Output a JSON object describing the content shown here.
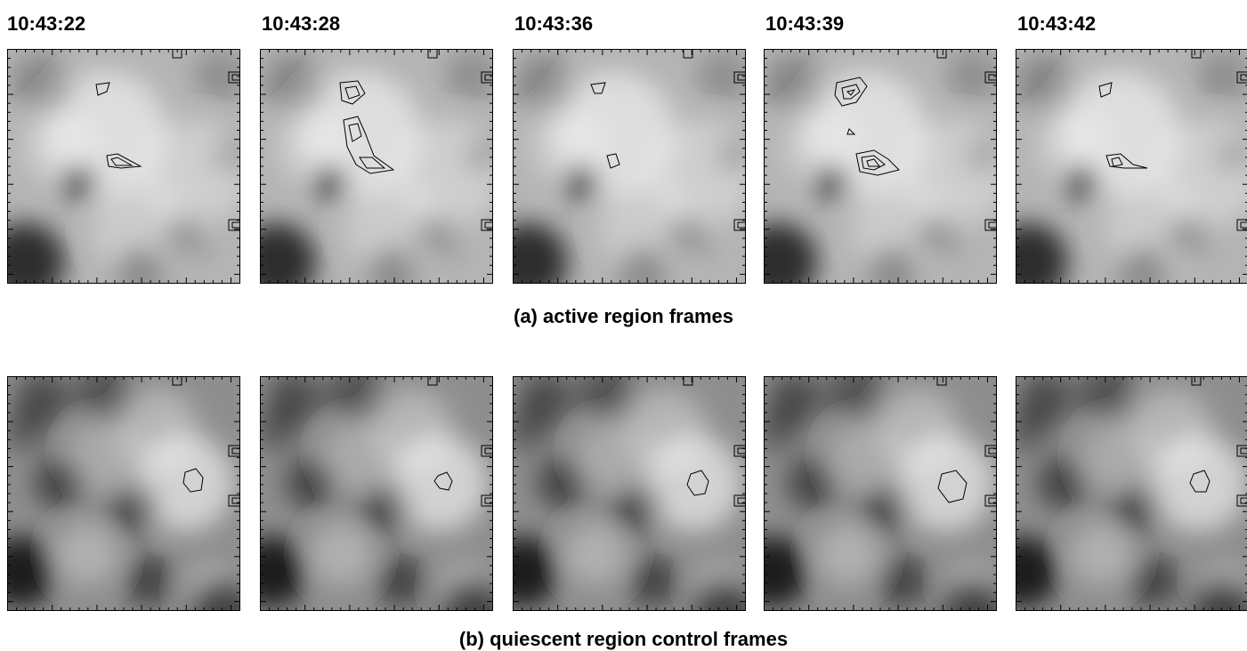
{
  "timestamps": [
    "10:43:22",
    "10:43:28",
    "10:43:36",
    "10:43:39",
    "10:43:42"
  ],
  "captions": {
    "active": "(a) active region frames",
    "quiescent": "(b) quiescent region control frames"
  },
  "icons": {
    "frame": "grayscale-contour-image"
  }
}
